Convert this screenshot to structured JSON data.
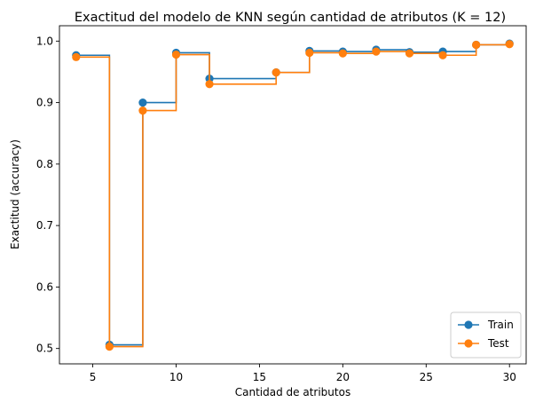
{
  "chart_data": {
    "type": "line",
    "drawstyle": "steps-post",
    "title": "Exactitud del modelo de KNN según cantidad de atributos (K = 12)",
    "xlabel": "Cantidad de atributos",
    "ylabel": "Exactitud (accuracy)",
    "xlim": [
      3,
      31
    ],
    "ylim": [
      0.475,
      1.025
    ],
    "xticks": [
      5,
      10,
      15,
      20,
      25,
      30
    ],
    "xtick_labels": [
      "5",
      "10",
      "15",
      "20",
      "25",
      "30"
    ],
    "yticks": [
      0.5,
      0.6,
      0.7,
      0.8,
      0.9,
      1.0
    ],
    "ytick_labels": [
      "0.5",
      "0.6",
      "0.7",
      "0.8",
      "0.9",
      "1.0"
    ],
    "grid": false,
    "legend_position": "lower-right",
    "x": [
      4,
      6,
      8,
      10,
      12,
      16,
      18,
      20,
      22,
      24,
      26,
      28,
      30
    ],
    "series": [
      {
        "name": "Train",
        "color": "#1f77b4",
        "values": [
          0.977,
          0.506,
          0.9,
          0.981,
          0.939,
          0.949,
          0.984,
          0.983,
          0.986,
          0.982,
          0.983,
          0.994,
          0.996
        ]
      },
      {
        "name": "Test",
        "color": "#ff7f0e",
        "values": [
          0.974,
          0.503,
          0.887,
          0.978,
          0.93,
          0.949,
          0.981,
          0.98,
          0.983,
          0.98,
          0.977,
          0.994,
          0.995
        ]
      }
    ]
  }
}
